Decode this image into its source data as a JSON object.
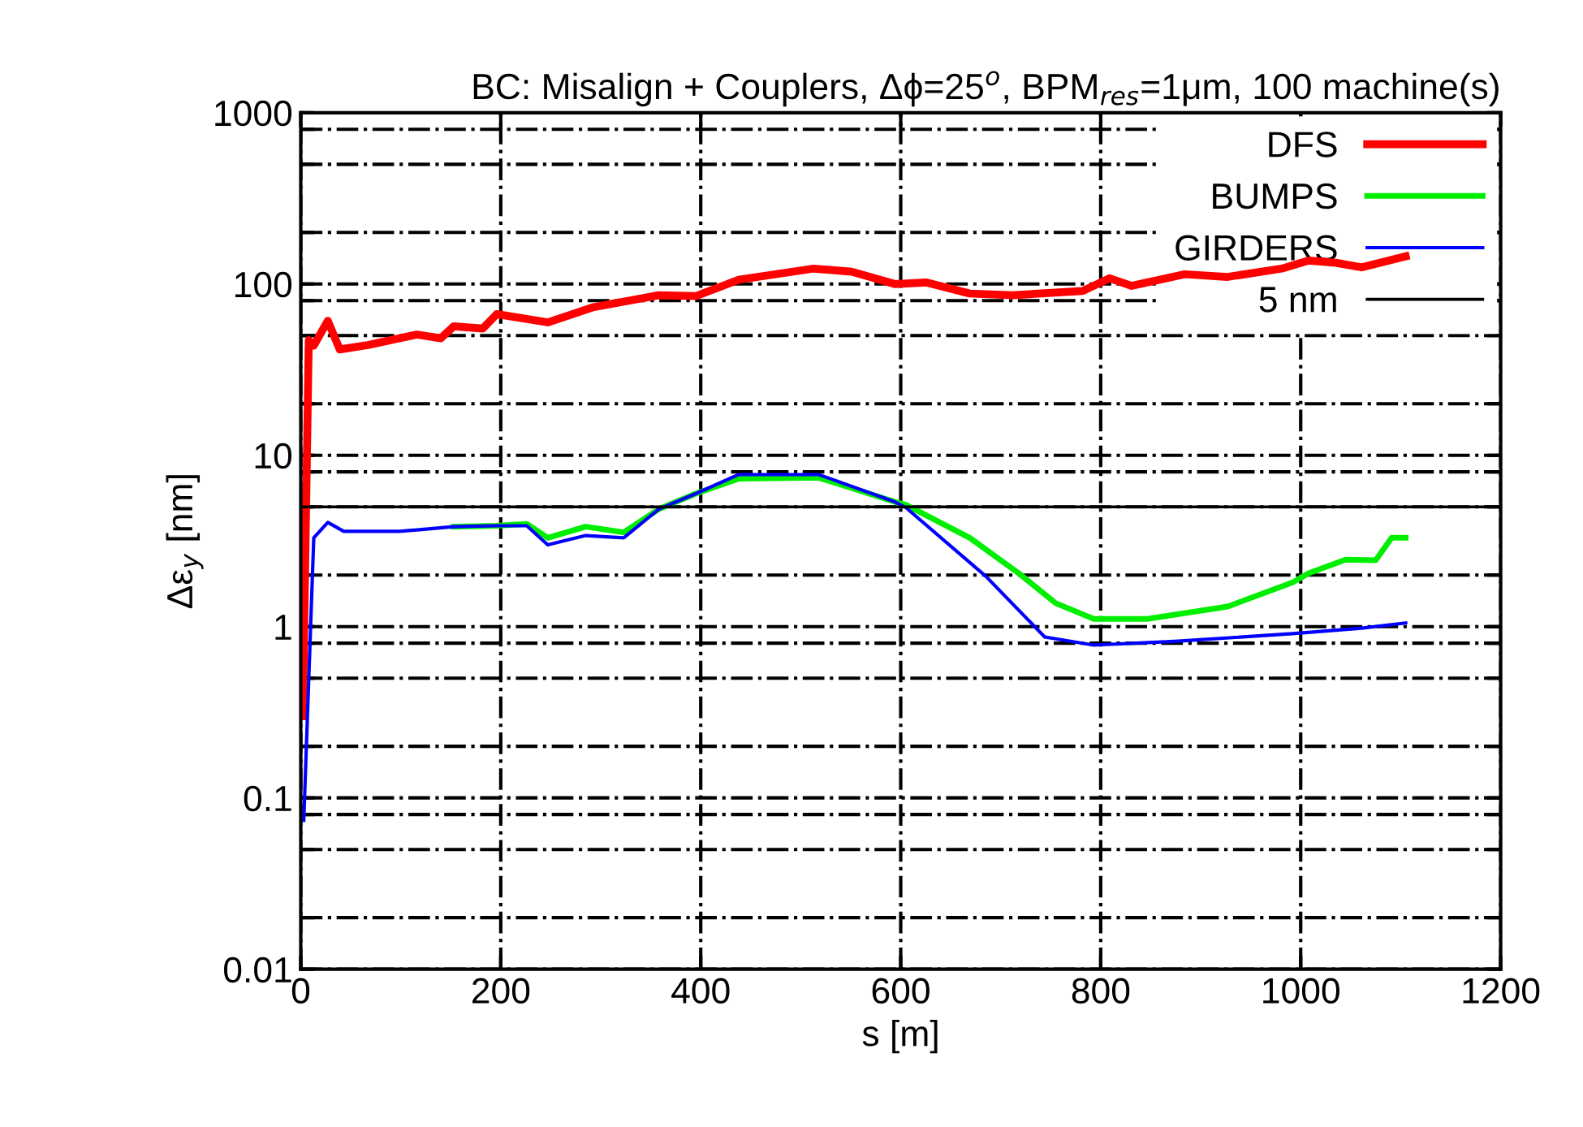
{
  "chart_data": {
    "type": "line",
    "title": "BC: Misalign + Couplers, Δϕ=25$^{o}$, BPM$_{res}$=1μm, 100 machine(s)",
    "xlabel": "s [m]",
    "ylabel": "Δε$_{y}$ [nm]",
    "log": "y",
    "grid": true,
    "legend": "top right",
    "line_style": "solid",
    "marker": "none",
    "xlim": [
      0,
      1200
    ],
    "xticks": [
      0,
      200,
      400,
      600,
      800,
      1000,
      1200
    ],
    "ylim": [
      0.01,
      1000
    ],
    "yticks": [
      0.01,
      {
        "value": 0.02,
        "label": null
      },
      {
        "value": 0.05,
        "label": null
      },
      {
        "value": 0.08,
        "label": null
      },
      0.1,
      {
        "value": 0.2,
        "label": null
      },
      {
        "value": 0.5,
        "label": null
      },
      {
        "value": 0.8,
        "label": null
      },
      1,
      {
        "value": 2,
        "label": null
      },
      {
        "value": 5,
        "label": null
      },
      {
        "value": 8,
        "label": null
      },
      10,
      {
        "value": 20,
        "label": null
      },
      {
        "value": 50,
        "label": null
      },
      {
        "value": 80,
        "label": null
      },
      100,
      {
        "value": 200,
        "label": null
      },
      {
        "value": 500,
        "label": null
      },
      {
        "value": 800,
        "label": null
      },
      1000
    ],
    "ref_lines": [
      {
        "axis": "y",
        "value": 5,
        "label": "5 nm",
        "color": "#000000",
        "line_style": "solid"
      }
    ],
    "series": [
      {
        "name": "DFS",
        "color": "#ff0000",
        "x": [
          2,
          8,
          13,
          27,
          39,
          67,
          116,
          140,
          153,
          182,
          196,
          247,
          293,
          358,
          395,
          438,
          513,
          551,
          594,
          626,
          669,
          712,
          782,
          809,
          831,
          884,
          927,
          981,
          1008,
          1035,
          1061,
          1105
        ],
        "values": [
          0.3,
          47,
          43.7,
          61,
          41.5,
          44,
          50.7,
          48.2,
          56.6,
          55,
          66.7,
          59.7,
          73.3,
          86,
          85,
          106,
          123,
          118,
          100,
          102,
          88,
          86,
          91,
          108,
          97.5,
          114,
          110,
          123,
          137,
          133,
          125,
          145
        ]
      },
      {
        "name": "BUMPS",
        "color": "#00ee00",
        "x": [
          153,
          196,
          226,
          247,
          285,
          323,
          358,
          395,
          438,
          518,
          594,
          605,
          669,
          718,
          755,
          793,
          847,
          927,
          992,
          1008,
          1045,
          1075,
          1091,
          1105
        ],
        "values": [
          3.83,
          3.88,
          3.98,
          3.3,
          3.83,
          3.55,
          4.85,
          5.97,
          7.3,
          7.4,
          5.35,
          5.15,
          3.3,
          2.05,
          1.37,
          1.11,
          1.11,
          1.31,
          1.81,
          2.05,
          2.46,
          2.44,
          3.3,
          3.3
        ]
      },
      {
        "name": "GIRDERS",
        "color": "#0000ff",
        "x": [
          3,
          13,
          27,
          43,
          99,
          153,
          196,
          226,
          247,
          285,
          323,
          358,
          395,
          438,
          518,
          594,
          605,
          685,
          744,
          793,
          874,
          992,
          1061,
          1105
        ],
        "values": [
          0.074,
          3.3,
          4.06,
          3.6,
          3.6,
          3.83,
          3.88,
          3.88,
          3.0,
          3.4,
          3.3,
          4.85,
          5.97,
          7.72,
          7.72,
          5.35,
          4.96,
          1.97,
          0.87,
          0.78,
          0.82,
          0.91,
          0.98,
          1.05
        ]
      }
    ]
  }
}
